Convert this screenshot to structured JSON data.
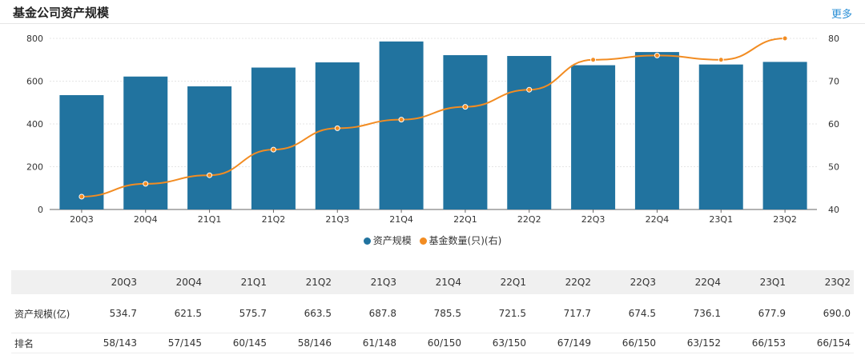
{
  "header": {
    "title": "基金公司资产规模",
    "more_label": "更多"
  },
  "colors": {
    "bar": "#21739f",
    "line": "#f28c22",
    "grid": "#e5e5e5",
    "axis": "#666666"
  },
  "chart_data": {
    "type": "bar+line",
    "categories": [
      "20Q3",
      "20Q4",
      "21Q1",
      "21Q2",
      "21Q3",
      "21Q4",
      "22Q1",
      "22Q2",
      "22Q3",
      "22Q4",
      "23Q1",
      "23Q2"
    ],
    "series": [
      {
        "name": "资产规模",
        "type": "bar",
        "axis": "left",
        "values": [
          534.7,
          621.5,
          575.7,
          663.5,
          687.8,
          785.5,
          721.5,
          717.7,
          674.5,
          736.1,
          677.9,
          690.0
        ]
      },
      {
        "name": "基金数量(只)(右)",
        "type": "line",
        "axis": "right",
        "values": [
          43,
          46,
          48,
          54,
          59,
          61,
          64,
          68,
          75,
          76,
          75,
          80
        ]
      }
    ],
    "y_left": {
      "min": 0,
      "max": 800,
      "ticks": [
        0,
        200,
        400,
        600,
        800
      ]
    },
    "y_right": {
      "min": 40,
      "max": 80,
      "ticks": [
        40,
        50,
        60,
        70,
        80
      ]
    },
    "legend": [
      "资产规模",
      "基金数量(只)(右)"
    ]
  },
  "table": {
    "headers": [
      "",
      "20Q3",
      "20Q4",
      "21Q1",
      "21Q2",
      "21Q3",
      "21Q4",
      "22Q1",
      "22Q2",
      "22Q3",
      "22Q4",
      "23Q1",
      "23Q2"
    ],
    "rows": [
      {
        "label": "资产规模(亿)",
        "values": [
          "534.7",
          "621.5",
          "575.7",
          "663.5",
          "687.8",
          "785.5",
          "721.5",
          "717.7",
          "674.5",
          "736.1",
          "677.9",
          "690.0"
        ]
      },
      {
        "label": "排名",
        "values": [
          "58/143",
          "57/145",
          "60/145",
          "58/146",
          "61/148",
          "60/150",
          "63/150",
          "67/149",
          "66/150",
          "63/152",
          "66/153",
          "66/154"
        ]
      }
    ]
  }
}
